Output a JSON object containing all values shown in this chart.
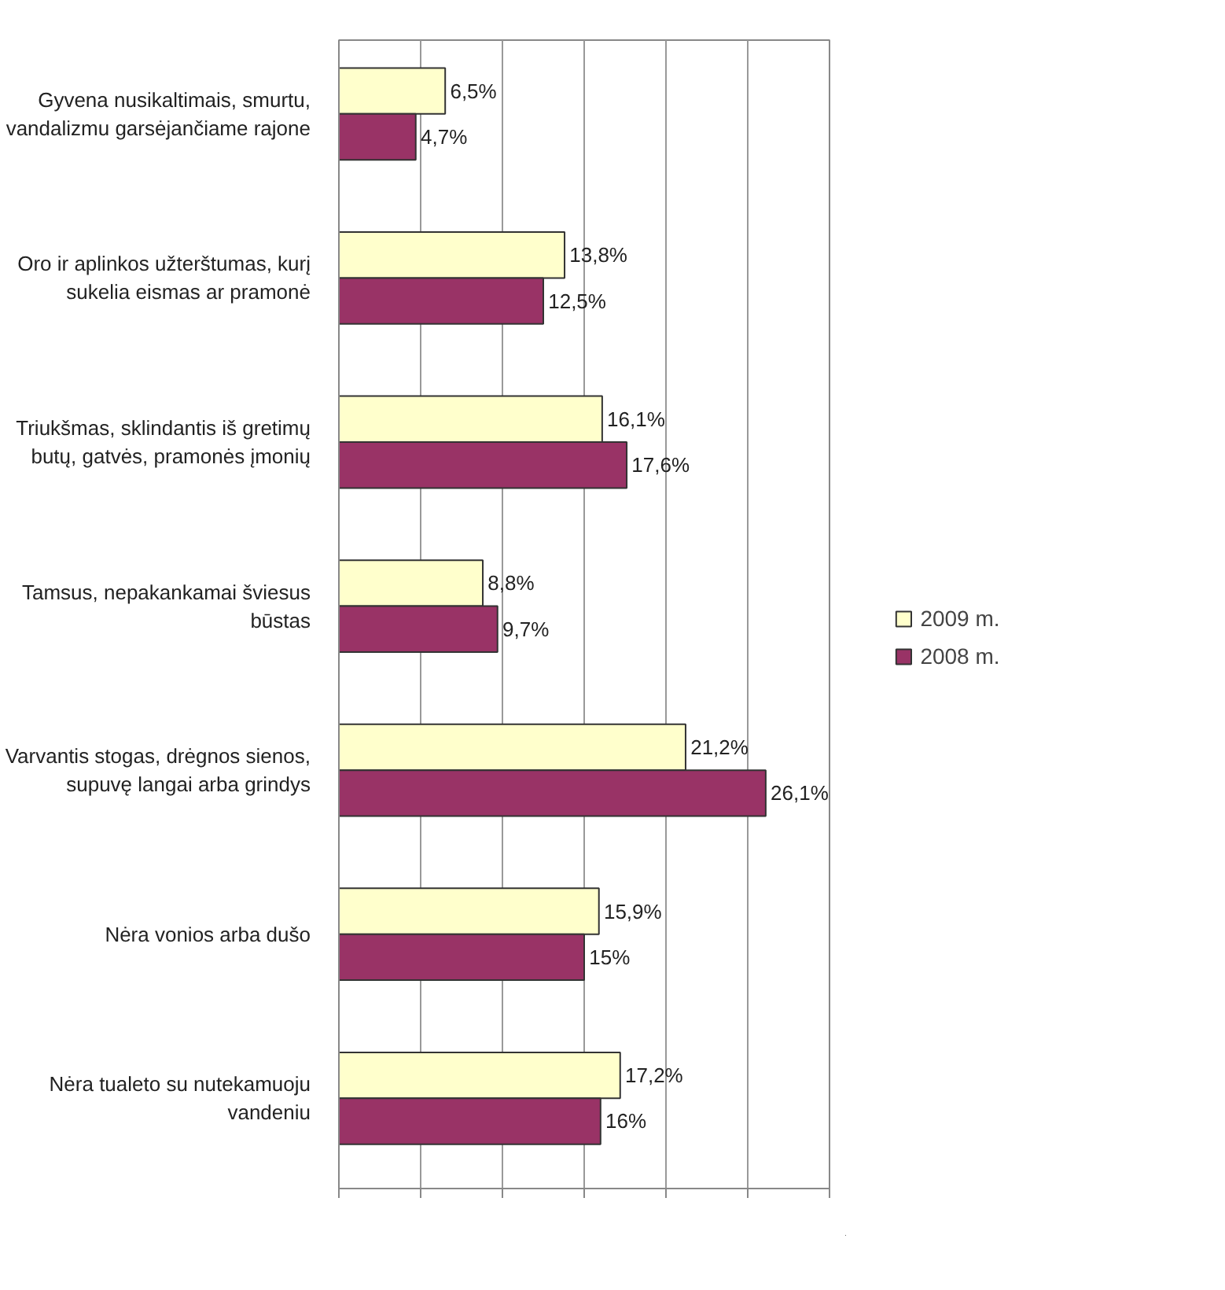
{
  "chart_data": {
    "type": "bar",
    "orientation": "horizontal",
    "categories": [
      "Gyvena nusikaltimais, smurtu, vandalizmu garsėjančiame rajone",
      "Oro ir aplinkos užterštumas, kurį sukelia eismas ar pramonė",
      "Triukšmas, sklindantis iš gretimų butų, gatvės, pramonės įmonių",
      "Tamsus, nepakankamai šviesus būstas",
      "Varvantis stogas, drėgnos sienos, supuvę langai arba grindys",
      "Nėra vonios arba dušo",
      "Nėra tualeto su nutekamuoju vandeniu"
    ],
    "series": [
      {
        "name": "2009 m.",
        "color": "#ffffcc",
        "values": [
          6.5,
          13.8,
          16.1,
          8.8,
          21.2,
          15.9,
          17.2
        ],
        "value_labels": [
          "6,5%",
          "13,8%",
          "16,1%",
          "8,8%",
          "21,2%",
          "15,9%",
          "17,2%"
        ]
      },
      {
        "name": "2008 m.",
        "color": "#993366",
        "values": [
          4.7,
          12.5,
          17.6,
          9.7,
          26.1,
          15,
          16
        ],
        "value_labels": [
          "4,7%",
          "12,5%",
          "17,6%",
          "9,7%",
          "26,1%",
          "15%",
          "16%"
        ]
      }
    ],
    "xlim": [
      0,
      30
    ],
    "xticks": [
      {
        "value": 0,
        "label": null
      },
      {
        "value": 5,
        "label": null
      },
      {
        "value": 10,
        "label": null
      },
      {
        "value": 15,
        "label": null
      },
      {
        "value": 20,
        "label": null
      },
      {
        "value": 25,
        "label": null
      },
      {
        "value": 30,
        "label": null
      }
    ],
    "grid": "x",
    "legend": "right"
  }
}
